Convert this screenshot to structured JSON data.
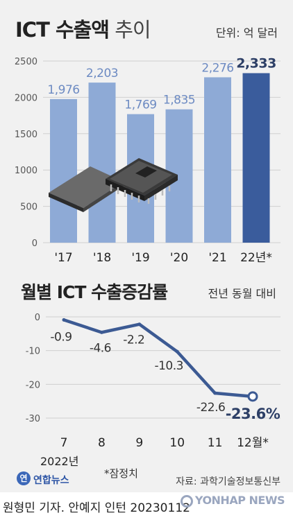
{
  "title": {
    "main": "ICT 수출액",
    "sub": " 추이"
  },
  "unit": "단위: 억 달러",
  "line_section": {
    "title": "월별 ICT 수출증감률",
    "subtitle": "전년 동월 대비",
    "year_label": "2022년"
  },
  "note": "*잠정치",
  "logo": {
    "mark": "연",
    "text": "연합뉴스"
  },
  "source": "자료: 과학기술정보통신부",
  "credit": "원형민 기자. 안예지 인턴  20230112",
  "watermark": "YONHAP NEWS",
  "colors": {
    "bar": "#8eaad6",
    "bar_highlight": "#3a5c9c",
    "line": "#3c5a93",
    "background": "#f1f1f1"
  },
  "chart_data": [
    {
      "type": "bar",
      "title": "ICT 수출액 추이",
      "unit": "억 달러",
      "categories": [
        "'17",
        "'18",
        "'19",
        "'20",
        "'21",
        "22년*"
      ],
      "values": [
        1976,
        2203,
        1769,
        1835,
        2276,
        2333
      ],
      "value_labels": [
        "1,976",
        "2,203",
        "1,769",
        "1,835",
        "2,276",
        "2,333"
      ],
      "yticks": [
        "0",
        "500",
        "1000",
        "1500",
        "2000",
        "2500"
      ],
      "ylim": [
        0,
        2500
      ],
      "grid": true
    },
    {
      "type": "line",
      "title": "월별 ICT 수출증감률",
      "subtitle": "전년 동월 대비",
      "categories": [
        "7",
        "8",
        "9",
        "10",
        "11",
        "12월*"
      ],
      "values": [
        -0.9,
        -4.6,
        -2.2,
        -10.3,
        -22.6,
        -23.6
      ],
      "value_labels": [
        "-0.9",
        "-4.6",
        "-2.2",
        "-10.3",
        "-22.6",
        "-23.6%"
      ],
      "yticks": [
        "0",
        "-10",
        "-20",
        "-30"
      ],
      "ylim": [
        -30,
        0
      ],
      "grid": true
    }
  ]
}
